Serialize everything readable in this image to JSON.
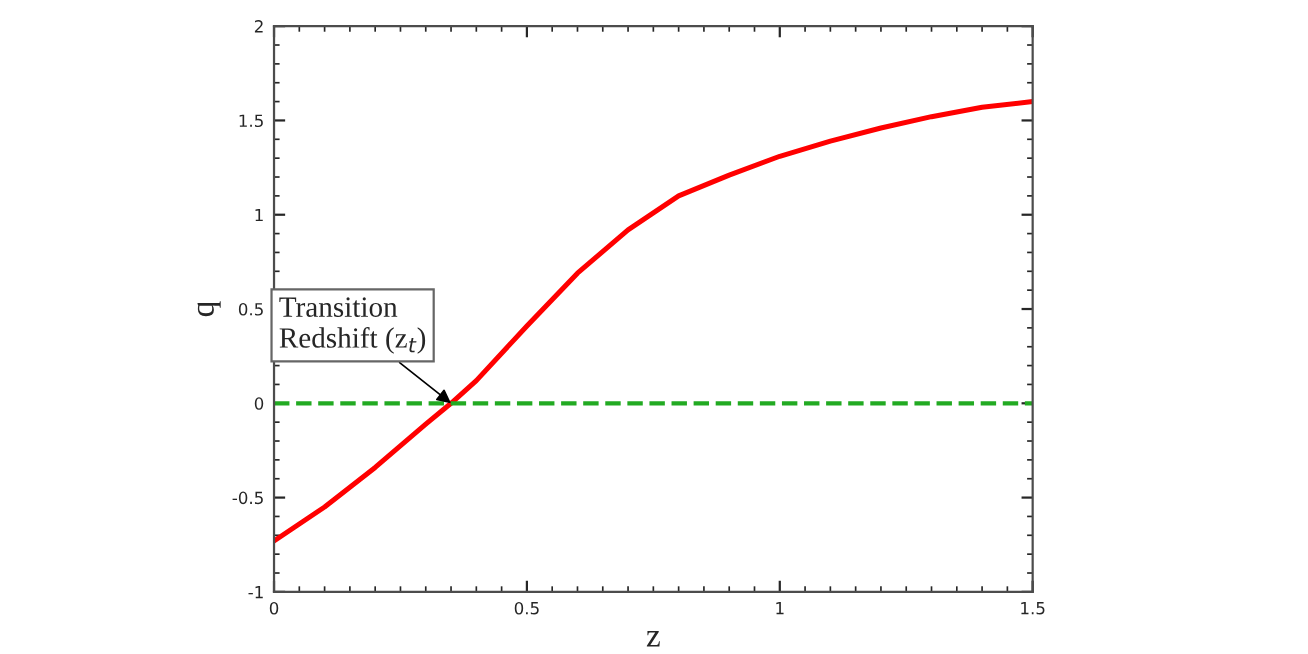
{
  "chart_data": {
    "type": "line",
    "xlabel": "z",
    "ylabel": "q",
    "x": [
      0,
      0.1,
      0.2,
      0.3,
      0.35,
      0.4,
      0.5,
      0.6,
      0.7,
      0.8,
      0.9,
      1.0,
      1.1,
      1.2,
      1.3,
      1.4,
      1.5
    ],
    "series": [
      {
        "color": "#ff0000",
        "values": [
          -0.73,
          -0.55,
          -0.34,
          -0.11,
          0,
          0.12,
          0.41,
          0.69,
          0.92,
          1.1,
          1.21,
          1.31,
          1.39,
          1.46,
          1.52,
          1.57,
          1.6
        ]
      }
    ],
    "ref_lines": [
      {
        "axis": "y",
        "value": 0,
        "color": "#22aa22",
        "line_style": "dashed"
      }
    ],
    "annotations": [
      {
        "text": "Transition\nRedshift (z$_{t}$)",
        "x": 0.35,
        "y": 0
      }
    ],
    "xlim": [
      0,
      1.5
    ],
    "xticks": [
      0,
      0.5,
      1,
      1.5
    ],
    "ylim": [
      -1,
      2
    ],
    "yticks": [
      -1,
      -0.5,
      0,
      0.5,
      1,
      1.5,
      2
    ],
    "grid": false,
    "legend": false,
    "marker": "none",
    "line_style": "solid"
  }
}
